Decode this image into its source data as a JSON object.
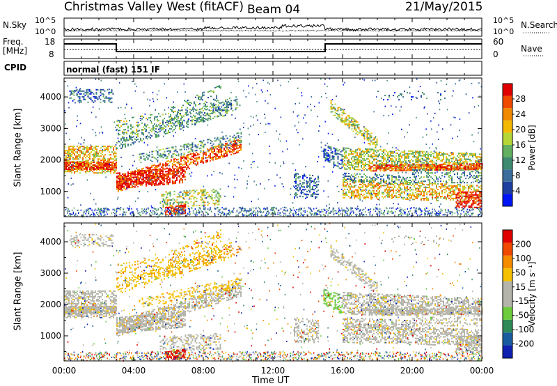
{
  "header": {
    "station": "Christmas Valley West (fitACF)",
    "beam": "Beam 04",
    "date": "21/May/2015"
  },
  "top_panels": {
    "nsky_label": "N.Sky",
    "nsearch_label": "N.Search",
    "nsky_ticks": [
      "10^5",
      "10^0"
    ],
    "nsearch_ticks": [
      "10^5",
      "10^0"
    ],
    "freq_label_1": "Freq.",
    "freq_label_2": "[MHz]",
    "freq_ticks": [
      "18",
      "8"
    ],
    "nave_label": "Nave",
    "nave_ticks": [
      "60",
      "0"
    ],
    "cpid_label": "CPID",
    "cpid_value": "normal (fast) 151 IF"
  },
  "colors": {
    "power_scale": [
      "#0015f5",
      "#1f3fa0",
      "#3b6e9c",
      "#3d8a70",
      "#62b060",
      "#b6d638",
      "#f5b800",
      "#f08a00",
      "#f04a00",
      "#e00000"
    ],
    "velocity_scale": [
      "#e00000",
      "#f04a00",
      "#f58c00",
      "#f5c000",
      "#b4b4aa",
      "#b4b4aa",
      "#6ccc3c",
      "#2e8b57",
      "#1a5ca0",
      "#1020b0"
    ]
  },
  "chart_data": [
    {
      "type": "heatmap",
      "name": "power-panel",
      "ylabel": "Slant Range [km]",
      "yticks": [
        "1000",
        "2000",
        "3000",
        "4000"
      ],
      "ylim": [
        200,
        4600
      ],
      "xlim": [
        0,
        24
      ],
      "colorbar_label": "Power [dB]",
      "colorbar_ticks": [
        "4",
        "8",
        "12",
        "16",
        "20",
        "24",
        "28"
      ]
    },
    {
      "type": "heatmap",
      "name": "velocity-panel",
      "ylabel": "Slant Range [km]",
      "yticks": [
        "1000",
        "2000",
        "3000",
        "4000"
      ],
      "ylim": [
        200,
        4600
      ],
      "xlim": [
        0,
        24
      ],
      "xlabel": "Time UT",
      "xticks": [
        "00:00",
        "04:00",
        "08:00",
        "12:00",
        "16:00",
        "20:00",
        "00:00"
      ],
      "colorbar_label": "Velocity [m s⁻¹]",
      "colorbar_ticks": [
        "200",
        "100",
        "50",
        "15",
        "-15",
        "-50",
        "-100",
        "-200"
      ]
    }
  ]
}
